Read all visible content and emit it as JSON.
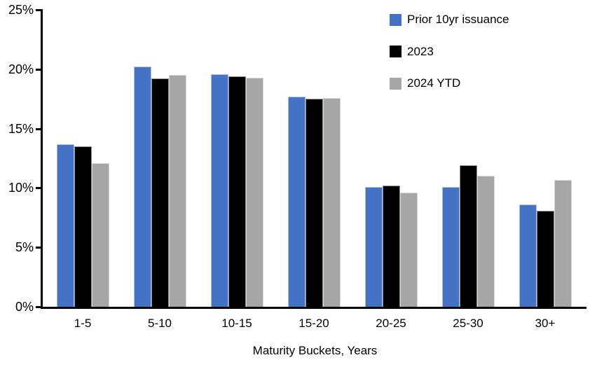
{
  "chart_data": {
    "type": "bar",
    "title": "",
    "xlabel": "Maturity Buckets, Years",
    "ylabel": "",
    "categories": [
      "1-5",
      "5-10",
      "10-15",
      "15-20",
      "20-25",
      "25-30",
      "30+"
    ],
    "series": [
      {
        "name": "Prior 10yr issuance",
        "color": "#4472C4",
        "values": [
          13.7,
          20.2,
          19.6,
          17.7,
          10.1,
          10.1,
          8.6
        ]
      },
      {
        "name": "2023",
        "color": "#000000",
        "values": [
          13.5,
          19.2,
          19.4,
          17.5,
          10.2,
          11.9,
          8.1
        ]
      },
      {
        "name": "2024 YTD",
        "color": "#A6A6A6",
        "values": [
          12.1,
          19.5,
          19.3,
          17.6,
          9.6,
          11.0,
          10.7
        ]
      }
    ],
    "ylim": [
      0,
      25
    ],
    "ytick_step": 5,
    "yticks": [
      "0%",
      "5%",
      "10%",
      "15%",
      "20%",
      "25%"
    ],
    "grid": false,
    "legend_position": "top-right",
    "axis_color": "#000000"
  }
}
